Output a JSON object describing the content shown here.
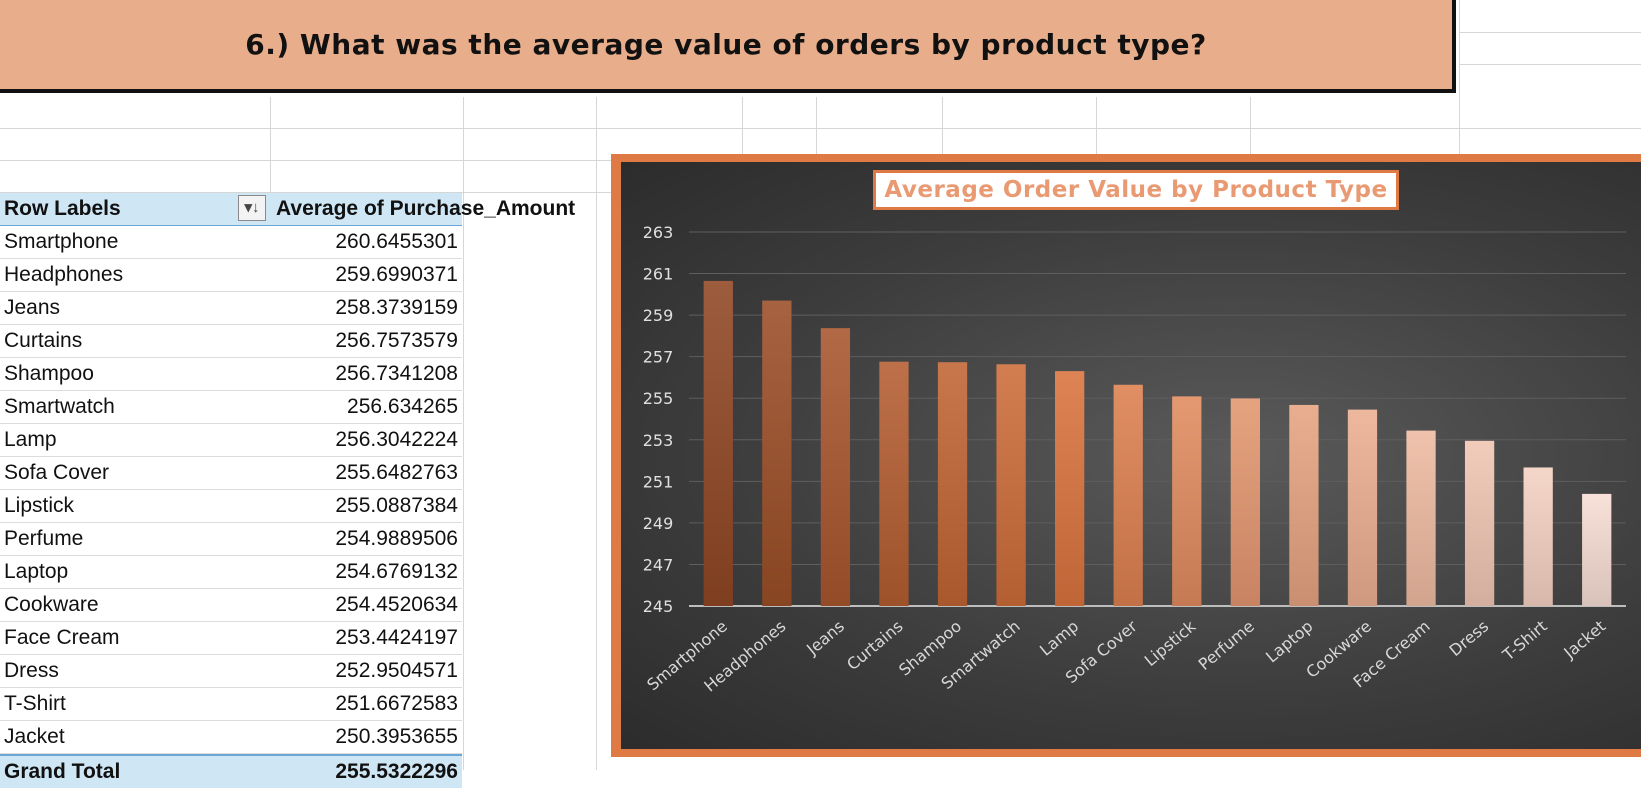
{
  "banner": {
    "question": "6.) What was the average value of orders by product type?"
  },
  "pivot": {
    "header_label": "Row Labels",
    "header_value": "Average of Purchase_Amount",
    "filter_icon": "sort-filter-icon",
    "rows": [
      {
        "label": "Smartphone",
        "value": "260.6455301"
      },
      {
        "label": "Headphones",
        "value": "259.6990371"
      },
      {
        "label": "Jeans",
        "value": "258.3739159"
      },
      {
        "label": "Curtains",
        "value": "256.7573579"
      },
      {
        "label": "Shampoo",
        "value": "256.7341208"
      },
      {
        "label": "Smartwatch",
        "value": "256.634265"
      },
      {
        "label": "Lamp",
        "value": "256.3042224"
      },
      {
        "label": "Sofa Cover",
        "value": "255.6482763"
      },
      {
        "label": "Lipstick",
        "value": "255.0887384"
      },
      {
        "label": "Perfume",
        "value": "254.9889506"
      },
      {
        "label": "Laptop",
        "value": "254.6769132"
      },
      {
        "label": "Cookware",
        "value": "254.4520634"
      },
      {
        "label": "Face Cream",
        "value": "253.4424197"
      },
      {
        "label": "Dress",
        "value": "252.9504571"
      },
      {
        "label": "T-Shirt",
        "value": "251.6672583"
      },
      {
        "label": "Jacket",
        "value": "250.3953655"
      }
    ],
    "total_label": "Grand Total",
    "total_value": "255.5322296"
  },
  "chart_data": {
    "type": "bar",
    "title": "Average Order Value by Product Type",
    "categories": [
      "Smartphone",
      "Headphones",
      "Jeans",
      "Curtains",
      "Shampoo",
      "Smartwatch",
      "Lamp",
      "Sofa Cover",
      "Lipstick",
      "Perfume",
      "Laptop",
      "Cookware",
      "Face Cream",
      "Dress",
      "T-Shirt",
      "Jacket"
    ],
    "values": [
      260.6455301,
      259.6990371,
      258.3739159,
      256.7573579,
      256.7341208,
      256.634265,
      256.3042224,
      255.6482763,
      255.0887384,
      254.9889506,
      254.6769132,
      254.4520634,
      253.4424197,
      252.9504571,
      251.6672583,
      250.3953655
    ],
    "ylim": [
      245,
      263
    ],
    "yticks": [
      "263",
      "261",
      "259",
      "257",
      "255",
      "253",
      "251",
      "249",
      "247",
      "245"
    ],
    "grid": true,
    "legend": "none",
    "colors": {
      "bar_dark": "#8f4623",
      "bar_mid": "#d9733d",
      "bar_light": "#f7ddd3",
      "frame": "#e07a45",
      "title_text": "#e99a72"
    }
  }
}
